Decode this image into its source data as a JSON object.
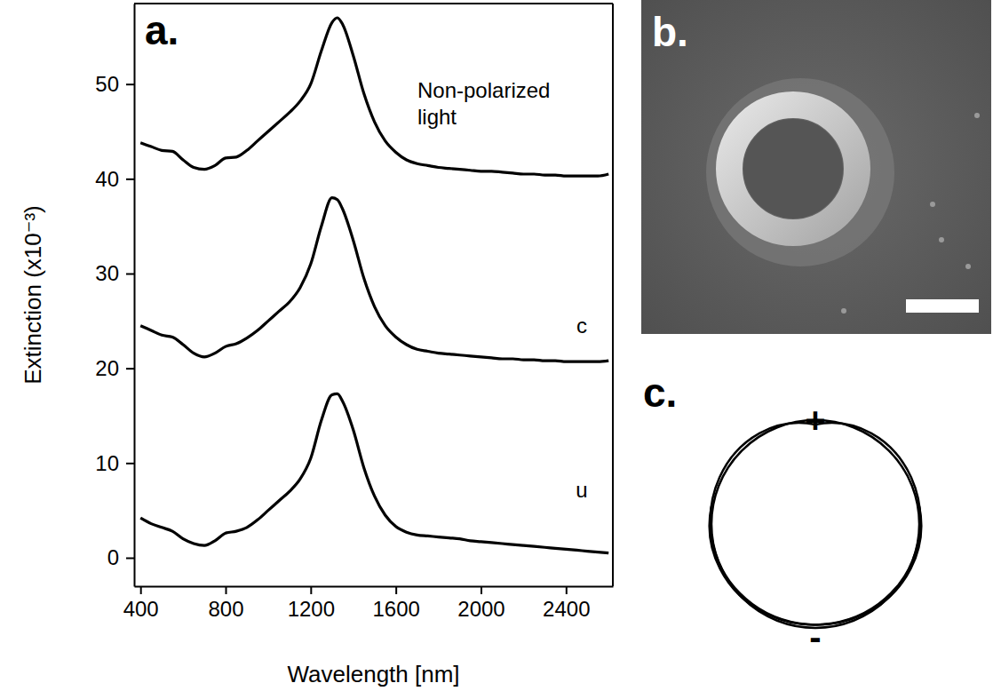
{
  "chart_data": [
    {
      "type": "line",
      "label": "a.",
      "x_label": "Wavelength [nm]",
      "y_label": "Extinction (x10⁻³)",
      "x": [
        400,
        450,
        500,
        550,
        600,
        650,
        700,
        750,
        800,
        850,
        900,
        950,
        1000,
        1050,
        1100,
        1150,
        1200,
        1250,
        1300,
        1325,
        1350,
        1400,
        1450,
        1500,
        1550,
        1600,
        1650,
        1700,
        1750,
        1800,
        1850,
        1900,
        1950,
        2000,
        2050,
        2100,
        2150,
        2200,
        2250,
        2300,
        2350,
        2400,
        2450,
        2500,
        2550,
        2600
      ],
      "series": [
        {
          "name": "Non-polarized light",
          "color": "#000000",
          "values": [
            43.8,
            43.4,
            43.0,
            42.9,
            42.0,
            41.2,
            41.0,
            41.4,
            42.2,
            42.3,
            43.0,
            44.0,
            45.0,
            46.0,
            47.0,
            48.2,
            50.0,
            53.5,
            56.5,
            57.0,
            56.3,
            53.0,
            49.0,
            46.0,
            44.0,
            42.8,
            42.0,
            41.6,
            41.4,
            41.2,
            41.1,
            41.0,
            40.9,
            40.8,
            40.8,
            40.7,
            40.6,
            40.5,
            40.5,
            40.4,
            40.4,
            40.3,
            40.3,
            40.3,
            40.3,
            40.5
          ]
        },
        {
          "name": "c",
          "color": "#000000",
          "values": [
            24.5,
            24.0,
            23.5,
            23.3,
            22.5,
            21.6,
            21.2,
            21.6,
            22.3,
            22.6,
            23.2,
            24.0,
            25.0,
            26.0,
            27.0,
            28.5,
            31.0,
            35.0,
            38.0,
            37.8,
            36.8,
            33.5,
            29.5,
            26.5,
            24.5,
            23.3,
            22.5,
            22.0,
            21.8,
            21.6,
            21.5,
            21.4,
            21.3,
            21.2,
            21.1,
            21.0,
            21.0,
            20.9,
            20.9,
            20.8,
            20.8,
            20.7,
            20.7,
            20.7,
            20.7,
            20.8
          ]
        },
        {
          "name": "u",
          "color": "#000000",
          "values": [
            4.2,
            3.6,
            3.2,
            2.8,
            2.0,
            1.5,
            1.3,
            1.8,
            2.6,
            2.8,
            3.2,
            4.0,
            5.0,
            6.0,
            7.0,
            8.3,
            10.5,
            14.5,
            17.2,
            17.3,
            16.5,
            13.5,
            9.5,
            6.5,
            4.5,
            3.3,
            2.7,
            2.4,
            2.3,
            2.2,
            2.1,
            2.0,
            1.8,
            1.7,
            1.6,
            1.5,
            1.4,
            1.3,
            1.2,
            1.1,
            1.0,
            0.9,
            0.8,
            0.7,
            0.6,
            0.5
          ]
        }
      ],
      "xlim": [
        370,
        2620
      ],
      "ylim": [
        -3,
        58.5
      ],
      "xticks": [
        400,
        800,
        1200,
        1600,
        2000,
        2400
      ],
      "yticks": [
        0,
        10,
        20,
        30,
        40,
        50
      ]
    }
  ],
  "panels": [
    {
      "label": "b."
    },
    {
      "label": "c.",
      "signs": [
        "+",
        "-"
      ]
    }
  ]
}
